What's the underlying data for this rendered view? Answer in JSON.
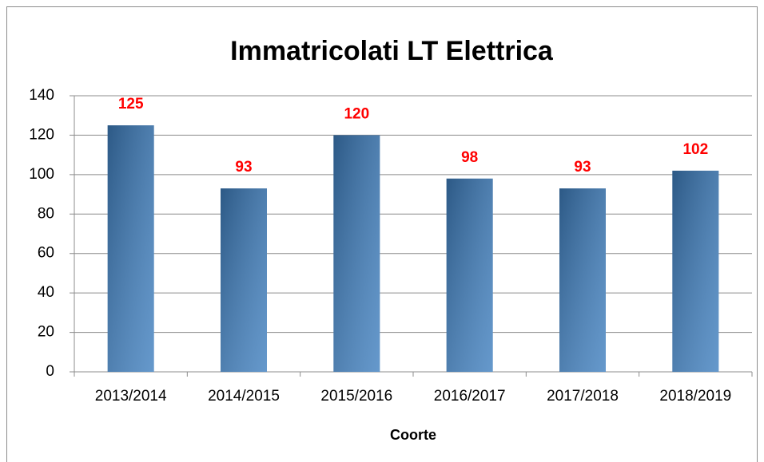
{
  "chart_data": {
    "type": "bar",
    "title": "Immatricolati LT Elettrica",
    "x_label": "Coorte",
    "categories": [
      "2013/2014",
      "2014/2015",
      "2015/2016",
      "2016/2017",
      "2017/2018",
      "2018/2019"
    ],
    "values": [
      125,
      93,
      120,
      98,
      93,
      102
    ],
    "color": "#3f7fbf",
    "label_color": "#ff0000",
    "ylim": [
      0,
      140
    ],
    "yticks": [
      0,
      20,
      40,
      60,
      80,
      100,
      120,
      140
    ],
    "grid": true
  }
}
